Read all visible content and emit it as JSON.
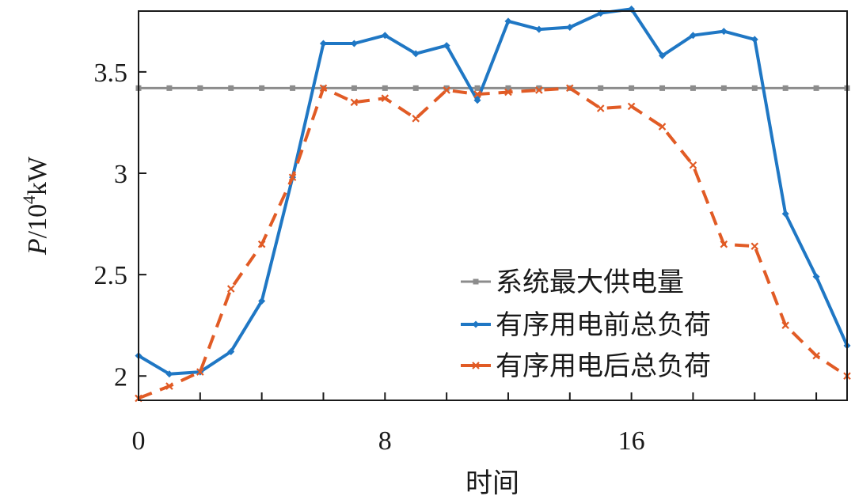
{
  "chart_data": {
    "type": "line",
    "xlabel": "时间",
    "ylabel": {
      "var": "P",
      "unit_prefix": "/10",
      "exponent": "4",
      "unit": "kW"
    },
    "xlim": [
      0,
      23
    ],
    "ylim": [
      1.88,
      3.8
    ],
    "x_ticks": [
      0,
      8,
      16
    ],
    "x_tick_labels": [
      "0",
      "8",
      "16"
    ],
    "y_ticks": [
      2,
      2.5,
      3,
      3.5
    ],
    "y_tick_labels": [
      "2",
      "2.5",
      "3",
      "3.5"
    ],
    "x": [
      0,
      1,
      2,
      3,
      4,
      5,
      6,
      7,
      8,
      9,
      10,
      11,
      12,
      13,
      14,
      15,
      16,
      17,
      18,
      19,
      20,
      21,
      22,
      23
    ],
    "grid": false,
    "legend_position": "lower-right",
    "series": [
      {
        "name": "系统最大供电量",
        "color": "#8c8c8c",
        "marker": "square",
        "line_style": "solid",
        "values": [
          3.42,
          3.42,
          3.42,
          3.42,
          3.42,
          3.42,
          3.42,
          3.42,
          3.42,
          3.42,
          3.42,
          3.42,
          3.42,
          3.42,
          3.42,
          3.42,
          3.42,
          3.42,
          3.42,
          3.42,
          3.42,
          3.42,
          3.42,
          3.42
        ]
      },
      {
        "name": "有序用电前总负荷",
        "color": "#1f77c4",
        "marker": "diamond",
        "line_style": "solid",
        "values": [
          2.1,
          2.01,
          2.02,
          2.12,
          2.37,
          2.98,
          3.64,
          3.64,
          3.68,
          3.59,
          3.63,
          3.36,
          3.75,
          3.71,
          3.72,
          3.79,
          3.81,
          3.58,
          3.68,
          3.7,
          3.66,
          2.8,
          2.49,
          2.15
        ]
      },
      {
        "name": "有序用电后总负荷",
        "color": "#e15b25",
        "marker": "x",
        "line_style": "dashed",
        "values": [
          1.89,
          1.95,
          2.02,
          2.43,
          2.65,
          2.98,
          3.42,
          3.35,
          3.37,
          3.27,
          3.41,
          3.39,
          3.4,
          3.41,
          3.42,
          3.32,
          3.33,
          3.23,
          3.04,
          2.65,
          2.64,
          2.25,
          2.1,
          2.0
        ]
      }
    ]
  }
}
